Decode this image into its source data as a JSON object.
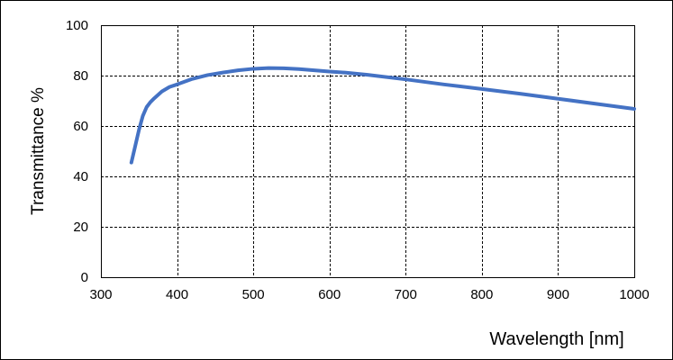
{
  "chart_data": {
    "type": "line",
    "title": "",
    "xlabel": "Wavelength [nm]",
    "ylabel": "Transmittance %",
    "xlim": [
      300,
      1000
    ],
    "ylim": [
      0,
      100
    ],
    "x_ticks": [
      300,
      400,
      500,
      600,
      700,
      800,
      900,
      1000
    ],
    "y_ticks": [
      0,
      20,
      40,
      60,
      80,
      100
    ],
    "x_tick_labels": [
      "300",
      "400",
      "500",
      "600",
      "700",
      "800",
      "900",
      "1000"
    ],
    "y_tick_labels": [
      "0",
      "20",
      "40",
      "60",
      "80",
      "100"
    ],
    "grid": true,
    "grid_style": "dashed",
    "legend": "none",
    "series": [
      {
        "color": "#4472c4",
        "x": [
          340,
          345,
          350,
          355,
          360,
          365,
          370,
          380,
          390,
          400,
          420,
          440,
          460,
          480,
          500,
          520,
          540,
          560,
          580,
          600,
          620,
          650,
          700,
          750,
          800,
          850,
          900,
          950,
          1000
        ],
        "y": [
          45.5,
          52,
          58.5,
          64,
          67.5,
          69.5,
          71,
          73.7,
          75.5,
          76.5,
          78.7,
          80.2,
          81.2,
          82.1,
          82.7,
          83,
          82.9,
          82.6,
          82.1,
          81.6,
          81.2,
          80.3,
          78.5,
          76.5,
          74.7,
          72.8,
          70.8,
          68.8,
          66.8
        ]
      }
    ]
  }
}
